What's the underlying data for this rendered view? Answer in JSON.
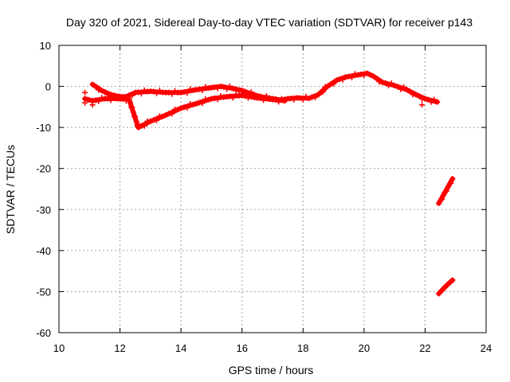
{
  "chart_data": {
    "type": "scatter",
    "title": "Day 320 of 2021, Sidereal Day-to-day VTEC variation (SDTVAR) for receiver p143",
    "xlabel": "GPS time / hours",
    "ylabel": "SDTVAR / TECUs",
    "xlim": [
      10,
      24
    ],
    "ylim": [
      -60,
      10
    ],
    "xticks": [
      "10",
      "12",
      "14",
      "16",
      "18",
      "20",
      "22",
      "24"
    ],
    "yticks": [
      "10",
      "0",
      "-10",
      "-20",
      "-30",
      "-40",
      "-50",
      "-60"
    ],
    "grid": true,
    "legend": "none",
    "marker": "plus",
    "color": "#ff0000",
    "series": [
      {
        "name": "upper-track",
        "x": [
          11.1,
          11.4,
          11.7,
          12.0,
          12.2,
          12.5,
          13.0,
          13.5,
          14.0,
          14.5,
          15.0,
          15.3,
          15.7,
          16.0,
          16.5,
          17.0,
          17.3,
          17.5,
          17.8,
          18.2,
          18.5,
          18.8,
          19.1,
          19.4,
          19.8,
          20.1,
          20.3,
          20.6,
          21.0,
          21.4,
          21.7,
          22.0,
          22.4
        ],
        "y": [
          0.5,
          -1.0,
          -2.0,
          -2.5,
          -2.5,
          -1.5,
          -1.2,
          -1.5,
          -1.5,
          -0.8,
          -0.3,
          0.0,
          -0.5,
          -1.0,
          -2.3,
          -3.0,
          -3.3,
          -3.0,
          -2.8,
          -2.9,
          -2.0,
          0.0,
          1.5,
          2.3,
          2.8,
          3.2,
          2.5,
          1.0,
          0.2,
          -0.8,
          -2.0,
          -3.0,
          -3.8
        ]
      },
      {
        "name": "lower-track",
        "x": [
          10.85,
          11.1,
          11.5,
          12.0,
          12.3,
          12.6,
          13.0,
          13.5,
          14.0,
          14.5,
          15.0,
          15.5,
          16.0,
          16.5,
          17.0,
          17.4
        ],
        "y": [
          -3.0,
          -3.5,
          -3.0,
          -3.0,
          -3.2,
          -10.0,
          -8.5,
          -7.0,
          -5.3,
          -4.2,
          -3.0,
          -2.5,
          -2.2,
          -2.8,
          -3.2,
          -3.5
        ]
      },
      {
        "name": "late-segment-1",
        "x": [
          22.45,
          22.6,
          22.75,
          22.9
        ],
        "y": [
          -28.5,
          -26.5,
          -24.5,
          -22.5
        ]
      },
      {
        "name": "late-segment-2",
        "x": [
          22.45,
          22.6,
          22.75,
          22.9
        ],
        "y": [
          -50.5,
          -49.3,
          -48.2,
          -47.2
        ]
      },
      {
        "name": "sparse-points",
        "x": [
          10.85,
          10.85,
          11.1,
          21.9
        ],
        "y": [
          -1.5,
          -4.0,
          -4.5,
          -4.5
        ]
      }
    ]
  }
}
